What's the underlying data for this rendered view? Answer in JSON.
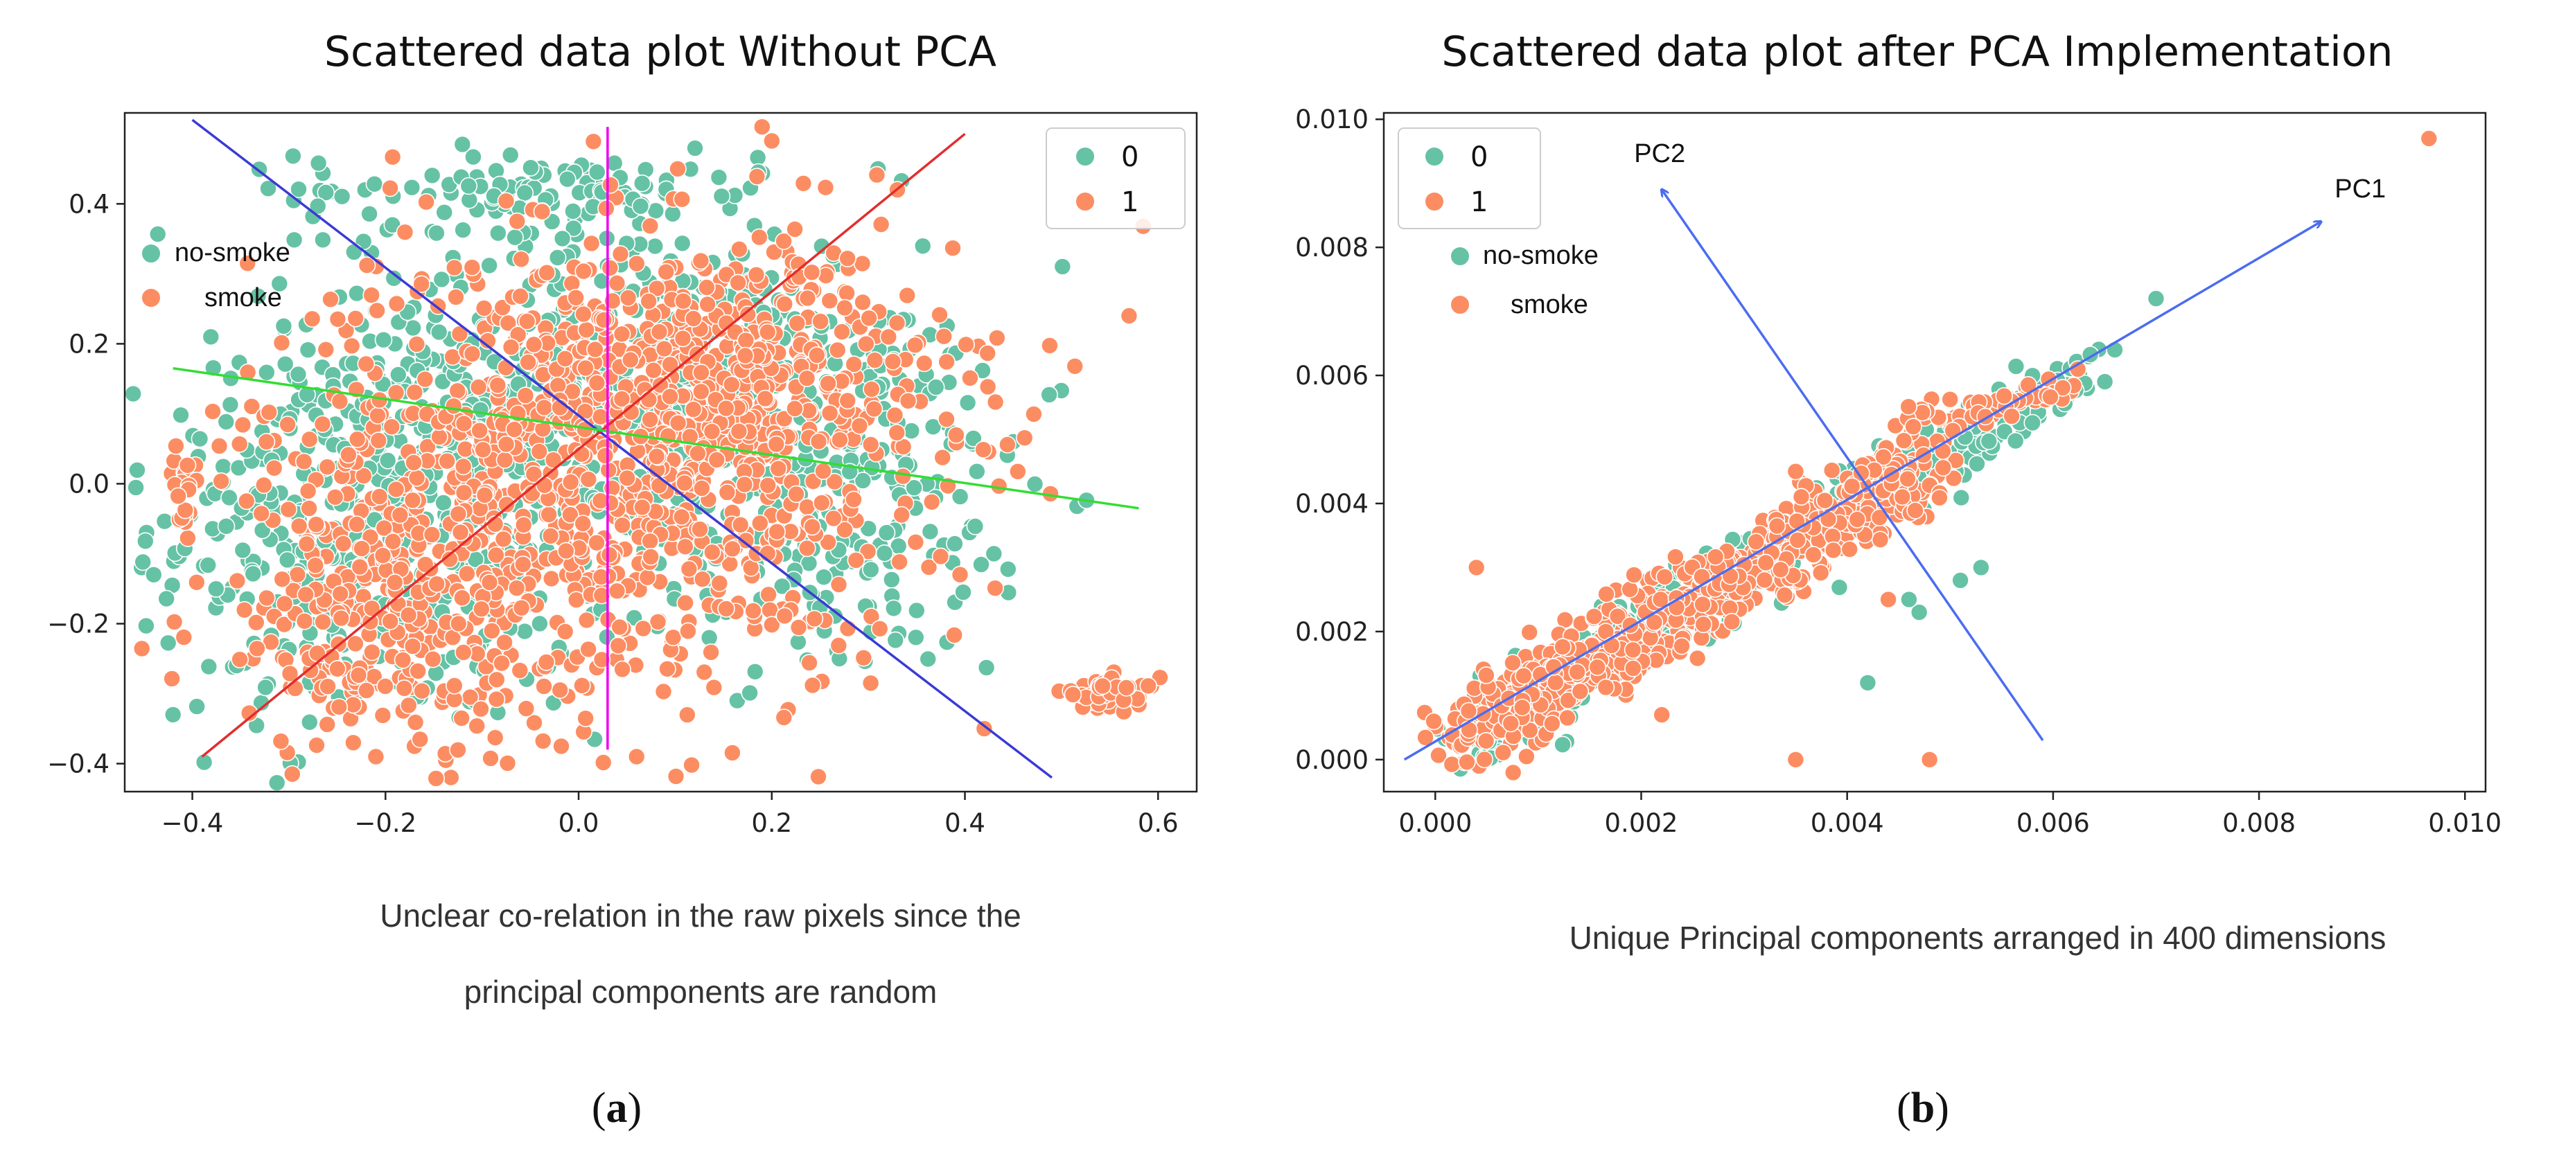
{
  "colors": {
    "class0": "#66c2a5",
    "class1": "#fc8d62",
    "axis": "#222222"
  },
  "panels": [
    {
      "sublabel": "(a)",
      "caption_lines": [
        "Unclear co-relation in the raw pixels since the",
        "principal components are random"
      ],
      "legend_items": [
        "0",
        "1"
      ],
      "inset_legend_items": [
        "no-smoke",
        "smoke"
      ]
    },
    {
      "sublabel": "(b)",
      "caption_lines": [
        "Unique Principal components arranged in 400 dimensions"
      ],
      "legend_items": [
        "0",
        "1"
      ],
      "inset_legend_items": [
        "no-smoke",
        "smoke"
      ]
    }
  ],
  "chart_data": [
    {
      "type": "scatter",
      "title": "Scattered data plot Without PCA",
      "xlabel": "",
      "ylabel": "",
      "xlim": [
        -0.47,
        0.64
      ],
      "ylim": [
        -0.44,
        0.53
      ],
      "xticks": [
        -0.4,
        -0.2,
        0.0,
        0.2,
        0.4,
        0.6
      ],
      "xtick_labels": [
        "−0.4",
        "−0.2",
        "0.0",
        "0.2",
        "0.4",
        "0.6"
      ],
      "yticks": [
        -0.4,
        -0.2,
        0.0,
        0.2,
        0.4
      ],
      "ytick_labels": [
        "−0.4",
        "−0.2",
        "0.0",
        "0.2",
        "0.4"
      ],
      "legend": "top-right",
      "grid": false,
      "series": [
        {
          "name": "0",
          "clusters": [
            {
              "center": [
                -0.2,
                -0.05
              ],
              "spread": [
                0.12,
                0.15
              ],
              "count": 520
            },
            {
              "center": [
                0.05,
                0.15
              ],
              "spread": [
                0.15,
                0.12
              ],
              "count": 380
            },
            {
              "center": [
                0.25,
                0.0
              ],
              "spread": [
                0.12,
                0.14
              ],
              "count": 260
            },
            {
              "center": [
                -0.05,
                0.42
              ],
              "spread": [
                0.12,
                0.03
              ],
              "count": 110
            }
          ],
          "points": [
            [
              -0.42,
              -0.33
            ],
            [
              -0.44,
              -0.13
            ],
            [
              0.45,
              0.06
            ],
            [
              0.43,
              -0.1
            ],
            [
              0.31,
              0.45
            ],
            [
              0.27,
              -0.25
            ]
          ]
        },
        {
          "name": "1",
          "clusters": [
            {
              "center": [
                0.0,
                0.0
              ],
              "spread": [
                0.17,
                0.17
              ],
              "count": 850
            },
            {
              "center": [
                0.15,
                0.15
              ],
              "spread": [
                0.12,
                0.1
              ],
              "count": 420
            },
            {
              "center": [
                -0.2,
                -0.2
              ],
              "spread": [
                0.1,
                0.09
              ],
              "count": 200
            },
            {
              "center": [
                0.55,
                -0.3
              ],
              "spread": [
                0.025,
                0.012
              ],
              "count": 50
            },
            {
              "center": [
                -0.41,
                0.0
              ],
              "spread": [
                0.006,
                0.025
              ],
              "count": 24
            }
          ],
          "points": [
            [
              0.57,
              0.24
            ],
            [
              0.19,
              0.51
            ],
            [
              0.2,
              0.49
            ],
            [
              0.42,
              -0.35
            ],
            [
              -0.21,
              -0.39
            ],
            [
              0.06,
              -0.39
            ],
            [
              0.33,
              0.42
            ]
          ]
        }
      ],
      "lines": [
        {
          "color": "#3a3ad6",
          "from": [
            -0.4,
            0.52
          ],
          "to": [
            0.49,
            -0.42
          ]
        },
        {
          "color": "#e22d2d",
          "from": [
            -0.39,
            -0.39
          ],
          "to": [
            0.4,
            0.5
          ]
        },
        {
          "color": "#33dd33",
          "from": [
            -0.42,
            0.165
          ],
          "to": [
            0.58,
            -0.035
          ]
        },
        {
          "color": "#ee00ee",
          "from": [
            0.03,
            0.51
          ],
          "to": [
            0.03,
            -0.38
          ]
        }
      ]
    },
    {
      "type": "scatter",
      "title": "Scattered data plot after PCA Implementation",
      "xlabel": "",
      "ylabel": "",
      "xlim": [
        -0.0005,
        0.0102
      ],
      "ylim": [
        -0.0005,
        0.0101
      ],
      "xticks": [
        0.0,
        0.002,
        0.004,
        0.006,
        0.008,
        0.01
      ],
      "xtick_labels": [
        "0.000",
        "0.002",
        "0.004",
        "0.006",
        "0.008",
        "0.010"
      ],
      "yticks": [
        0.0,
        0.002,
        0.004,
        0.006,
        0.008,
        0.01
      ],
      "ytick_labels": [
        "0.000",
        "0.002",
        "0.004",
        "0.006",
        "0.008",
        "0.010"
      ],
      "legend": "top-left",
      "grid": false,
      "series": [
        {
          "name": "0",
          "clusters": [
            {
              "along": [
                0.0002,
                0.0002,
                0.0045,
                0.0045
              ],
              "spread": 0.00028,
              "count": 360
            },
            {
              "along": [
                0.0045,
                0.0042,
                0.0064,
                0.0062
              ],
              "spread": 0.00018,
              "count": 70
            },
            {
              "along": [
                0.0045,
                0.0045,
                0.0058,
                0.0055
              ],
              "spread": 0.00035,
              "count": 30
            }
          ],
          "points": [
            [
              0.007,
              0.0072
            ],
            [
              0.0066,
              0.0064
            ],
            [
              0.0047,
              0.0023
            ],
            [
              0.0042,
              0.0012
            ],
            [
              0.0051,
              0.0028
            ],
            [
              0.0053,
              0.003
            ],
            [
              0.0046,
              0.0025
            ]
          ]
        },
        {
          "name": "1",
          "clusters": [
            {
              "along": [
                0.0002,
                0.0003,
                0.0048,
                0.0046
              ],
              "spread": 0.00032,
              "count": 720
            },
            {
              "along": [
                0.0045,
                0.0053,
                0.0062,
                0.0058
              ],
              "spread": 0.00012,
              "count": 60
            }
          ],
          "points": [
            [
              0.00965,
              0.0097
            ],
            [
              0.0035,
              0.0
            ],
            [
              0.0048,
              0.0
            ],
            [
              0.0004,
              0.003
            ],
            [
              0.0035,
              0.0045
            ],
            [
              0.0044,
              0.0025
            ],
            [
              0.0022,
              0.0007
            ]
          ]
        }
      ],
      "arrows": [
        {
          "label": "PC1",
          "color": "#4b6cf0",
          "from": [
            -0.0003,
            0.0
          ],
          "to": [
            0.0086,
            0.0084
          ]
        },
        {
          "label": "PC2",
          "color": "#4b6cf0",
          "from": [
            0.0059,
            0.0003
          ],
          "to": [
            0.0022,
            0.0089
          ]
        }
      ]
    }
  ]
}
